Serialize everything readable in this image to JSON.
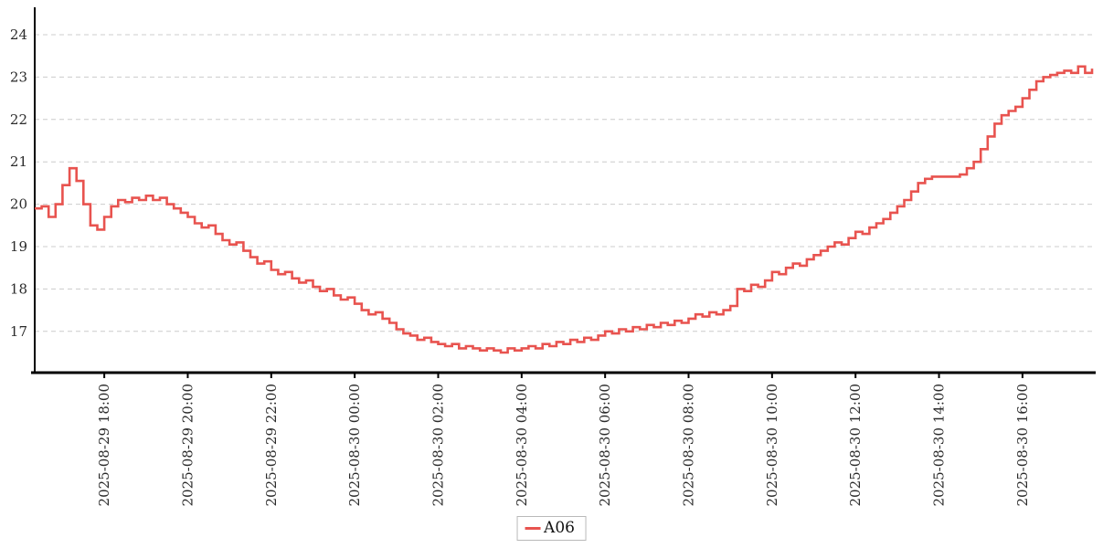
{
  "colors": {
    "background": "#ffffff",
    "axis": "#000000",
    "tick_text": "#2b2b2b",
    "grid": "#cccccc",
    "series_red": "#e8534f"
  },
  "legend": {
    "label": "A06"
  },
  "chart_data": {
    "type": "line",
    "title": "",
    "xlabel": "",
    "ylabel": "",
    "line_style": "step-hold",
    "grid": {
      "horizontal_dashed": true,
      "color": "#cccccc"
    },
    "x_axis": {
      "start": "2025-08-29 16:20",
      "step_minutes": 10,
      "total_minutes": 1520,
      "tick_labels": [
        "2025-08-29 18:00",
        "2025-08-29 20:00",
        "2025-08-29 22:00",
        "2025-08-30 00:00",
        "2025-08-30 02:00",
        "2025-08-30 04:00",
        "2025-08-30 06:00",
        "2025-08-30 08:00",
        "2025-08-30 10:00",
        "2025-08-30 12:00",
        "2025-08-30 14:00",
        "2025-08-30 16:00"
      ],
      "tick_offsets_minutes": [
        100,
        220,
        340,
        460,
        580,
        700,
        820,
        940,
        1060,
        1180,
        1300,
        1420
      ]
    },
    "y_axis": {
      "ticks": [
        17,
        18,
        19,
        20,
        21,
        22,
        23,
        24
      ],
      "display_min": 16.0,
      "display_max": 24.6
    },
    "legend_position": "bottom-center",
    "series": [
      {
        "name": "A06",
        "color": "#e8534f",
        "values": [
          19.9,
          19.95,
          19.7,
          20.0,
          20.45,
          20.85,
          20.55,
          20.0,
          19.5,
          19.4,
          19.7,
          19.95,
          20.1,
          20.05,
          20.15,
          20.1,
          20.2,
          20.1,
          20.15,
          20.0,
          19.9,
          19.8,
          19.7,
          19.55,
          19.45,
          19.5,
          19.3,
          19.15,
          19.05,
          19.1,
          18.9,
          18.75,
          18.6,
          18.65,
          18.45,
          18.35,
          18.4,
          18.25,
          18.15,
          18.2,
          18.05,
          17.95,
          18.0,
          17.85,
          17.75,
          17.8,
          17.65,
          17.5,
          17.4,
          17.45,
          17.3,
          17.2,
          17.05,
          16.95,
          16.9,
          16.8,
          16.85,
          16.75,
          16.7,
          16.65,
          16.7,
          16.6,
          16.65,
          16.6,
          16.55,
          16.6,
          16.55,
          16.5,
          16.6,
          16.55,
          16.6,
          16.65,
          16.6,
          16.7,
          16.65,
          16.75,
          16.7,
          16.8,
          16.75,
          16.85,
          16.8,
          16.9,
          17.0,
          16.95,
          17.05,
          17.0,
          17.1,
          17.05,
          17.15,
          17.1,
          17.2,
          17.15,
          17.25,
          17.2,
          17.3,
          17.4,
          17.35,
          17.45,
          17.4,
          17.5,
          17.6,
          18.0,
          17.95,
          18.1,
          18.05,
          18.2,
          18.4,
          18.35,
          18.5,
          18.6,
          18.55,
          18.7,
          18.8,
          18.9,
          19.0,
          19.1,
          19.05,
          19.2,
          19.35,
          19.3,
          19.45,
          19.55,
          19.65,
          19.8,
          19.95,
          20.1,
          20.3,
          20.5,
          20.6,
          20.65,
          20.65,
          20.65,
          20.65,
          20.7,
          20.85,
          21.0,
          21.3,
          21.6,
          21.9,
          22.1,
          22.2,
          22.3,
          22.5,
          22.7,
          22.9,
          23.0,
          23.05,
          23.1,
          23.15,
          23.1,
          23.25,
          23.1,
          23.2
        ]
      }
    ]
  }
}
